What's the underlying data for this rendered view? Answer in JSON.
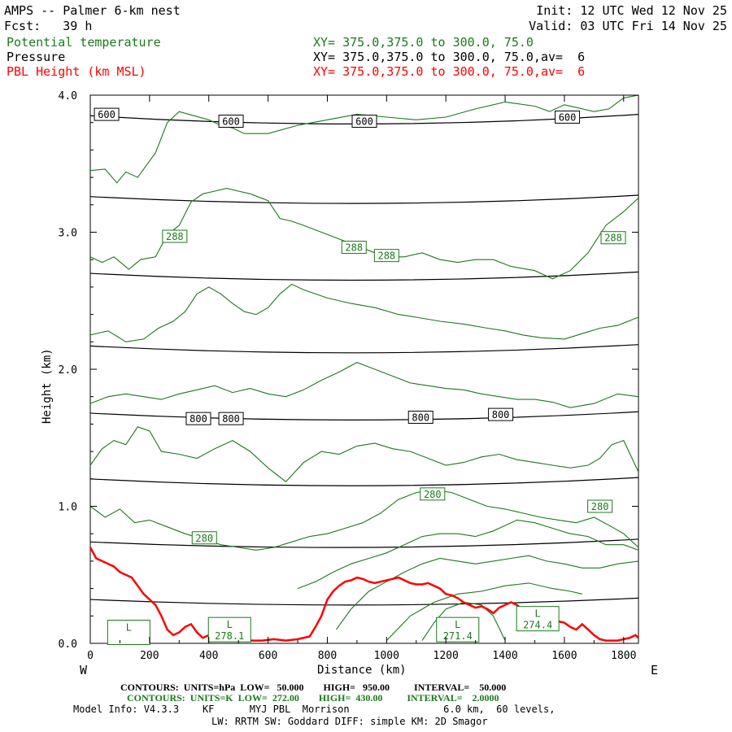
{
  "header": {
    "model_title": "AMPS -- Palmer 6-km nest",
    "forecast": "Fcst:   39 h",
    "init": "Init: 12 UTC Wed 12 Nov 25",
    "valid": "Valid: 03 UTC Fri 14 Nov 25",
    "fields": [
      {
        "name": "Potential temperature",
        "xsec": "XY= 375.0,375.0 to 300.0, 75.0",
        "color": "#1a7a1a"
      },
      {
        "name": "Pressure",
        "xsec": "XY= 375.0,375.0 to 300.0, 75.0,av=  6",
        "color": "#000000"
      },
      {
        "name": "PBL Height (km MSL)",
        "xsec": "XY= 375.0,375.0 to 300.0, 75.0,av=  6",
        "color": "#ff0000"
      }
    ]
  },
  "chart_data": {
    "type": "line",
    "xlabel": "Distance (km)",
    "ylabel": "Height (km)",
    "xlim": [
      0,
      1850
    ],
    "ylim": [
      0,
      4.0
    ],
    "x_ticks": [
      0,
      200,
      400,
      600,
      800,
      1000,
      1200,
      1400,
      1600,
      1800
    ],
    "y_ticks": [
      0.0,
      1.0,
      2.0,
      3.0,
      4.0
    ],
    "y_tick_labels": [
      "0.0",
      "1.0",
      "2.0",
      "3.0",
      "4.0"
    ],
    "left_end_label": "W",
    "right_end_label": "E",
    "pressure_isobars_hpa": [
      {
        "level": 950,
        "y_left": 0.32,
        "y_mid": 0.28,
        "y_right": 0.33
      },
      {
        "level": 900,
        "y_left": 0.74,
        "y_mid": 0.7,
        "y_right": 0.76
      },
      {
        "level": 850,
        "y_left": 1.2,
        "y_mid": 1.15,
        "y_right": 1.21
      },
      {
        "level": 800,
        "y_left": 1.68,
        "y_mid": 1.63,
        "y_right": 1.69
      },
      {
        "level": 750,
        "y_left": 2.17,
        "y_mid": 2.12,
        "y_right": 2.18
      },
      {
        "level": 700,
        "y_left": 2.7,
        "y_mid": 2.65,
        "y_right": 2.71
      },
      {
        "level": 650,
        "y_left": 3.26,
        "y_mid": 3.21,
        "y_right": 3.27
      },
      {
        "level": 600,
        "y_left": 3.85,
        "y_mid": 3.79,
        "y_right": 3.86
      }
    ],
    "pressure_labels": [
      {
        "text": "600",
        "x": 55,
        "y": 3.86
      },
      {
        "text": "600",
        "x": 475,
        "y": 3.81
      },
      {
        "text": "600",
        "x": 925,
        "y": 3.81
      },
      {
        "text": "600",
        "x": 1610,
        "y": 3.84
      },
      {
        "text": "800",
        "x": 365,
        "y": 1.64
      },
      {
        "text": "800",
        "x": 475,
        "y": 1.64
      },
      {
        "text": "800",
        "x": 1115,
        "y": 1.65
      },
      {
        "text": "800",
        "x": 1385,
        "y": 1.67
      }
    ],
    "theta_labels": [
      {
        "text": "288",
        "x": 285,
        "y": 2.97
      },
      {
        "text": "288",
        "x": 890,
        "y": 2.89
      },
      {
        "text": "288",
        "x": 1000,
        "y": 2.83
      },
      {
        "text": "288",
        "x": 1765,
        "y": 2.96
      },
      {
        "text": "280",
        "x": 385,
        "y": 0.77
      },
      {
        "text": "280",
        "x": 1155,
        "y": 1.09
      },
      {
        "text": "280",
        "x": 1720,
        "y": 1.0
      }
    ],
    "theta_low_labels": [
      {
        "text": "L",
        "value": "",
        "x": 130,
        "y": 0.08
      },
      {
        "text": "L",
        "value": "278.1",
        "x": 470,
        "y": 0.1
      },
      {
        "text": "L",
        "value": "271.4",
        "x": 1240,
        "y": 0.1
      },
      {
        "text": "L",
        "value": "274.4",
        "x": 1510,
        "y": 0.18
      }
    ],
    "theta_isentropes": [
      {
        "x": [
          0,
          50,
          90,
          120,
          160,
          220,
          260,
          300,
          350,
          400,
          440,
          480,
          520,
          600,
          700,
          800,
          900,
          1000,
          1100,
          1200,
          1300,
          1400,
          1500,
          1550,
          1600,
          1700,
          1750,
          1800,
          1850
        ],
        "y": [
          3.45,
          3.46,
          3.36,
          3.44,
          3.4,
          3.58,
          3.8,
          3.88,
          3.85,
          3.82,
          3.78,
          3.76,
          3.72,
          3.72,
          3.78,
          3.82,
          3.86,
          3.84,
          3.82,
          3.84,
          3.9,
          3.95,
          3.92,
          3.88,
          3.93,
          3.88,
          3.9,
          3.98,
          4.0
        ]
      },
      {
        "x": [
          0,
          40,
          80,
          130,
          170,
          220,
          260,
          300,
          340,
          380,
          420,
          460,
          500,
          540,
          600,
          640,
          680,
          720,
          780,
          840,
          900,
          960,
          1000,
          1060,
          1120,
          1180,
          1240,
          1300,
          1360,
          1420,
          1500,
          1560,
          1620,
          1680,
          1740,
          1800,
          1850
        ],
        "y": [
          2.82,
          2.78,
          2.82,
          2.73,
          2.8,
          2.82,
          2.98,
          3.05,
          3.22,
          3.28,
          3.3,
          3.32,
          3.3,
          3.28,
          3.23,
          3.1,
          3.08,
          3.05,
          3.0,
          2.95,
          2.9,
          2.85,
          2.82,
          2.82,
          2.85,
          2.8,
          2.78,
          2.8,
          2.8,
          2.75,
          2.72,
          2.66,
          2.72,
          2.85,
          3.05,
          3.15,
          3.25
        ]
      },
      {
        "x": [
          0,
          60,
          120,
          180,
          230,
          280,
          320,
          360,
          400,
          440,
          480,
          520,
          560,
          600,
          640,
          680,
          720,
          800,
          880,
          960,
          1040,
          1100,
          1180,
          1260,
          1340,
          1400,
          1460,
          1520,
          1600,
          1660,
          1720,
          1780,
          1850
        ],
        "y": [
          2.25,
          2.28,
          2.2,
          2.22,
          2.3,
          2.35,
          2.42,
          2.55,
          2.6,
          2.55,
          2.48,
          2.42,
          2.4,
          2.45,
          2.55,
          2.62,
          2.58,
          2.52,
          2.48,
          2.45,
          2.4,
          2.38,
          2.35,
          2.33,
          2.3,
          2.28,
          2.25,
          2.23,
          2.22,
          2.26,
          2.3,
          2.32,
          2.38
        ]
      },
      {
        "x": [
          0,
          60,
          120,
          180,
          240,
          300,
          360,
          420,
          480,
          540,
          600,
          660,
          720,
          780,
          840,
          900,
          960,
          1020,
          1080,
          1140,
          1200,
          1260,
          1320,
          1380,
          1440,
          1500,
          1560,
          1620,
          1700,
          1780,
          1850
        ],
        "y": [
          1.75,
          1.8,
          1.82,
          1.8,
          1.78,
          1.82,
          1.85,
          1.88,
          1.83,
          1.86,
          1.82,
          1.8,
          1.85,
          1.92,
          1.98,
          2.05,
          2.0,
          1.95,
          1.9,
          1.88,
          1.86,
          1.85,
          1.82,
          1.8,
          1.78,
          1.78,
          1.76,
          1.72,
          1.75,
          1.82,
          1.8
        ]
      },
      {
        "x": [
          0,
          40,
          80,
          120,
          160,
          200,
          240,
          300,
          360,
          420,
          480,
          540,
          600,
          660,
          720,
          780,
          840,
          900,
          960,
          1020,
          1080,
          1140,
          1200,
          1260,
          1320,
          1380,
          1440,
          1500,
          1560,
          1620,
          1680,
          1720,
          1760,
          1800,
          1850
        ],
        "y": [
          1.3,
          1.42,
          1.48,
          1.45,
          1.58,
          1.55,
          1.4,
          1.38,
          1.35,
          1.42,
          1.48,
          1.4,
          1.28,
          1.18,
          1.32,
          1.4,
          1.38,
          1.44,
          1.46,
          1.42,
          1.4,
          1.35,
          1.3,
          1.32,
          1.36,
          1.38,
          1.34,
          1.32,
          1.3,
          1.28,
          1.3,
          1.35,
          1.45,
          1.48,
          1.25
        ]
      },
      {
        "x": [
          0,
          50,
          100,
          150,
          200,
          260,
          320,
          380,
          440,
          500,
          560,
          620,
          680,
          740,
          800,
          860,
          920,
          980,
          1040,
          1100,
          1160,
          1220,
          1280,
          1340,
          1400,
          1460,
          1520,
          1580,
          1640,
          1700,
          1760,
          1800,
          1850
        ],
        "y": [
          1.0,
          0.92,
          0.98,
          0.88,
          0.9,
          0.85,
          0.8,
          0.76,
          0.72,
          0.7,
          0.68,
          0.7,
          0.74,
          0.78,
          0.8,
          0.84,
          0.88,
          0.95,
          1.05,
          1.1,
          1.12,
          1.1,
          1.05,
          1.0,
          0.98,
          0.95,
          0.92,
          0.9,
          0.88,
          0.92,
          0.85,
          0.8,
          0.7
        ]
      },
      {
        "x": [
          700,
          760,
          820,
          880,
          940,
          1000,
          1060,
          1120,
          1180,
          1240,
          1300,
          1360,
          1400,
          1440,
          1500,
          1560,
          1620,
          1680,
          1740,
          1800,
          1850
        ],
        "y": [
          0.4,
          0.45,
          0.52,
          0.58,
          0.62,
          0.66,
          0.72,
          0.78,
          0.8,
          0.8,
          0.78,
          0.82,
          0.86,
          0.9,
          0.88,
          0.84,
          0.8,
          0.78,
          0.72,
          0.72,
          0.68
        ]
      },
      {
        "x": [
          830,
          880,
          940,
          1000,
          1060,
          1120,
          1180,
          1240,
          1300,
          1360,
          1420,
          1480,
          1540,
          1600,
          1660,
          1720,
          1780,
          1850
        ],
        "y": [
          0.1,
          0.25,
          0.38,
          0.45,
          0.52,
          0.58,
          0.62,
          0.6,
          0.58,
          0.6,
          0.62,
          0.64,
          0.6,
          0.58,
          0.55,
          0.55,
          0.58,
          0.6
        ]
      },
      {
        "x": [
          1000,
          1080,
          1160,
          1240,
          1320,
          1400,
          1480,
          1560,
          1620,
          1660
        ],
        "y": [
          0.02,
          0.2,
          0.3,
          0.36,
          0.38,
          0.42,
          0.44,
          0.4,
          0.38,
          0.36
        ]
      },
      {
        "x": [
          1120,
          1160,
          1200,
          1260,
          1320,
          1360,
          1400
        ],
        "y": [
          0.02,
          0.15,
          0.25,
          0.3,
          0.28,
          0.2,
          0.02
        ]
      }
    ],
    "pbl_height_km": {
      "x": [
        0,
        20,
        40,
        60,
        80,
        100,
        120,
        140,
        160,
        180,
        200,
        220,
        240,
        260,
        280,
        300,
        320,
        340,
        360,
        380,
        400,
        420,
        440,
        460,
        480,
        500,
        540,
        580,
        620,
        660,
        700,
        740,
        760,
        780,
        800,
        820,
        840,
        860,
        880,
        900,
        920,
        940,
        960,
        980,
        1000,
        1020,
        1040,
        1060,
        1080,
        1100,
        1120,
        1140,
        1160,
        1180,
        1200,
        1220,
        1240,
        1260,
        1280,
        1300,
        1320,
        1340,
        1360,
        1380,
        1400,
        1420,
        1440,
        1460,
        1480,
        1500,
        1520,
        1540,
        1560,
        1580,
        1600,
        1620,
        1640,
        1660,
        1680,
        1700,
        1720,
        1740,
        1760,
        1780,
        1800,
        1820,
        1840,
        1850
      ],
      "y": [
        0.7,
        0.62,
        0.6,
        0.58,
        0.56,
        0.52,
        0.5,
        0.48,
        0.42,
        0.36,
        0.32,
        0.28,
        0.2,
        0.1,
        0.06,
        0.08,
        0.12,
        0.14,
        0.08,
        0.04,
        0.06,
        0.05,
        0.03,
        0.03,
        0.04,
        0.03,
        0.02,
        0.02,
        0.03,
        0.02,
        0.03,
        0.05,
        0.12,
        0.2,
        0.32,
        0.38,
        0.42,
        0.45,
        0.46,
        0.48,
        0.47,
        0.45,
        0.44,
        0.45,
        0.46,
        0.47,
        0.48,
        0.46,
        0.44,
        0.43,
        0.43,
        0.44,
        0.42,
        0.4,
        0.36,
        0.35,
        0.33,
        0.3,
        0.28,
        0.26,
        0.27,
        0.25,
        0.22,
        0.26,
        0.28,
        0.3,
        0.28,
        0.24,
        0.2,
        0.18,
        0.22,
        0.18,
        0.14,
        0.16,
        0.15,
        0.12,
        0.1,
        0.14,
        0.1,
        0.06,
        0.03,
        0.02,
        0.02,
        0.02,
        0.03,
        0.04,
        0.06,
        0.04
      ],
      "color": "#ff0000"
    }
  },
  "footer": {
    "contours_pressure": "CONTOURS:  UNITS=hPa  LOW=   50.000        HIGH=   950.00          INTERVAL=    50.000",
    "contours_theta": "CONTOURS:  UNITS=K  LOW=  272.00        HIGH=  430.00          INTERVAL=    2.0000",
    "model_info": "Model Info: V4.3.3    KF      MYJ PBL  Morrison                6.0 km,  60 levels,",
    "physics": "LW: RRTM SW: Goddard DIFF: simple KM: 2D Smagor"
  }
}
